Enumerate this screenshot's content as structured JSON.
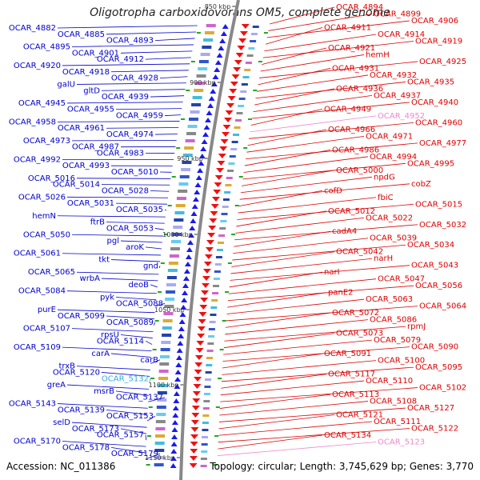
{
  "title": "Oligotropha carboxidovorans OM5, complete genome",
  "accession": "Accession: NC_011386",
  "topology": "Topology: circular; Length: 3,745,629 bp; Genes: 3,770",
  "ticks": [
    "850 kbp",
    "900 kbp",
    "950 kbp",
    "1000 kbp",
    "1050 kbp",
    "1100 kbp",
    "1150 kbp"
  ],
  "left_labels": [
    {
      "text": "OCAR_4882",
      "color": "#0000cc"
    },
    {
      "text": "OCAR_4885",
      "color": "#0000cc"
    },
    {
      "text": "OCAR_4893",
      "color": "#0000cc"
    },
    {
      "text": "OCAR_4895",
      "color": "#0000cc"
    },
    {
      "text": "OCAR_4901",
      "color": "#0000cc"
    },
    {
      "text": "OCAR_4912",
      "color": "#0000cc"
    },
    {
      "text": "OCAR_4920",
      "color": "#0000cc"
    },
    {
      "text": "OCAR_4918",
      "color": "#0000cc"
    },
    {
      "text": "OCAR_4928",
      "color": "#0000cc"
    },
    {
      "text": "galU",
      "color": "#0000cc"
    },
    {
      "text": "gltD",
      "color": "#0000cc"
    },
    {
      "text": "OCAR_4939",
      "color": "#0000cc"
    },
    {
      "text": "OCAR_4945",
      "color": "#0000cc"
    },
    {
      "text": "OCAR_4955",
      "color": "#0000cc"
    },
    {
      "text": "OCAR_4959",
      "color": "#0000cc"
    },
    {
      "text": "OCAR_4958",
      "color": "#0000cc"
    },
    {
      "text": "OCAR_4961",
      "color": "#0000cc"
    },
    {
      "text": "OCAR_4974",
      "color": "#0000cc"
    },
    {
      "text": "OCAR_4973",
      "color": "#0000cc"
    },
    {
      "text": "OCAR_4987",
      "color": "#0000cc"
    },
    {
      "text": "OCAR_4983",
      "color": "#0000cc"
    },
    {
      "text": "OCAR_4992",
      "color": "#0000cc"
    },
    {
      "text": "OCAR_4993",
      "color": "#0000cc"
    },
    {
      "text": "OCAR_5010",
      "color": "#0000cc"
    },
    {
      "text": "OCAR_5016",
      "color": "#0000cc"
    },
    {
      "text": "OCAR_5014",
      "color": "#0000cc"
    },
    {
      "text": "OCAR_5028",
      "color": "#0000cc"
    },
    {
      "text": "OCAR_5026",
      "color": "#0000cc"
    },
    {
      "text": "OCAR_5031",
      "color": "#0000cc"
    },
    {
      "text": "OCAR_5035",
      "color": "#0000cc"
    },
    {
      "text": "hemN",
      "color": "#0000cc"
    },
    {
      "text": "ftrB",
      "color": "#0000cc"
    },
    {
      "text": "OCAR_5053",
      "color": "#0000cc"
    },
    {
      "text": "OCAR_5050",
      "color": "#0000cc"
    },
    {
      "text": "pgl",
      "color": "#0000cc"
    },
    {
      "text": "aroK",
      "color": "#0000cc"
    },
    {
      "text": "OCAR_5061",
      "color": "#0000cc"
    },
    {
      "text": "tkt",
      "color": "#0000cc"
    },
    {
      "text": "gnd",
      "color": "#0000cc"
    },
    {
      "text": "OCAR_5065",
      "color": "#0000cc"
    },
    {
      "text": "wrbA",
      "color": "#0000cc"
    },
    {
      "text": "deoB",
      "color": "#0000cc"
    },
    {
      "text": "OCAR_5084",
      "color": "#0000cc"
    },
    {
      "text": "pyk",
      "color": "#0000cc"
    },
    {
      "text": "OCAR_5088",
      "color": "#0000cc"
    },
    {
      "text": "purE",
      "color": "#0000cc"
    },
    {
      "text": "OCAR_5099",
      "color": "#0000cc"
    },
    {
      "text": "OCAR_5089",
      "color": "#0000cc"
    },
    {
      "text": "OCAR_5107",
      "color": "#0000cc"
    },
    {
      "text": "rpsU",
      "color": "#0000cc"
    },
    {
      "text": "OCAR_5114",
      "color": "#0000cc"
    },
    {
      "text": "OCAR_5109",
      "color": "#0000cc"
    },
    {
      "text": "carA",
      "color": "#0000cc"
    },
    {
      "text": "carB",
      "color": "#0000cc"
    },
    {
      "text": "trxB",
      "color": "#0000cc"
    },
    {
      "text": "OCAR_5120",
      "color": "#0000cc"
    },
    {
      "text": "OCAR_5132",
      "color": "#33aadd"
    },
    {
      "text": "greA",
      "color": "#0000cc"
    },
    {
      "text": "msrB",
      "color": "#0000cc"
    },
    {
      "text": "OCAR_5137",
      "color": "#0000cc"
    },
    {
      "text": "OCAR_5143",
      "color": "#0000cc"
    },
    {
      "text": "OCAR_5139",
      "color": "#0000cc"
    },
    {
      "text": "OCAR_5153",
      "color": "#0000cc"
    },
    {
      "text": "selD",
      "color": "#0000cc"
    },
    {
      "text": "OCAR_5173",
      "color": "#0000cc"
    },
    {
      "text": "OCAR_5157",
      "color": "#0000cc"
    },
    {
      "text": "OCAR_5170",
      "color": "#0000cc"
    },
    {
      "text": "OCAR_5178",
      "color": "#0000cc"
    },
    {
      "text": "OCAR_5179",
      "color": "#0000cc"
    }
  ],
  "right_labels": [
    {
      "text": "OCAR_4894",
      "color": "#dd0000"
    },
    {
      "text": "OCAR_4899",
      "color": "#dd0000"
    },
    {
      "text": "OCAR_4906",
      "color": "#dd0000"
    },
    {
      "text": "OCAR_4911",
      "color": "#dd0000"
    },
    {
      "text": "OCAR_4914",
      "color": "#dd0000"
    },
    {
      "text": "OCAR_4919",
      "color": "#dd0000"
    },
    {
      "text": "OCAR_4921",
      "color": "#dd0000"
    },
    {
      "text": "hemH",
      "color": "#dd0000"
    },
    {
      "text": "OCAR_4925",
      "color": "#dd0000"
    },
    {
      "text": "OCAR_4931",
      "color": "#dd0000"
    },
    {
      "text": "OCAR_4932",
      "color": "#dd0000"
    },
    {
      "text": "OCAR_4935",
      "color": "#dd0000"
    },
    {
      "text": "OCAR_4936",
      "color": "#dd0000"
    },
    {
      "text": "OCAR_4937",
      "color": "#dd0000"
    },
    {
      "text": "OCAR_4940",
      "color": "#dd0000"
    },
    {
      "text": "OCAR_4949",
      "color": "#dd0000"
    },
    {
      "text": "OCAR_4952",
      "color": "#ee88cc"
    },
    {
      "text": "OCAR_4960",
      "color": "#dd0000"
    },
    {
      "text": "OCAR_4966",
      "color": "#dd0000"
    },
    {
      "text": "OCAR_4971",
      "color": "#dd0000"
    },
    {
      "text": "OCAR_4977",
      "color": "#dd0000"
    },
    {
      "text": "OCAR_4986",
      "color": "#dd0000"
    },
    {
      "text": "OCAR_4994",
      "color": "#dd0000"
    },
    {
      "text": "OCAR_4995",
      "color": "#dd0000"
    },
    {
      "text": "OCAR_5000",
      "color": "#dd0000"
    },
    {
      "text": "npdG",
      "color": "#dd0000"
    },
    {
      "text": "cobZ",
      "color": "#dd0000"
    },
    {
      "text": "cofD",
      "color": "#dd0000"
    },
    {
      "text": "fbiC",
      "color": "#dd0000"
    },
    {
      "text": "OCAR_5015",
      "color": "#dd0000"
    },
    {
      "text": "OCAR_5012",
      "color": "#dd0000"
    },
    {
      "text": "OCAR_5022",
      "color": "#dd0000"
    },
    {
      "text": "OCAR_5032",
      "color": "#dd0000"
    },
    {
      "text": "cadA4",
      "color": "#dd0000"
    },
    {
      "text": "OCAR_5039",
      "color": "#dd0000"
    },
    {
      "text": "OCAR_5034",
      "color": "#dd0000"
    },
    {
      "text": "OCAR_5042",
      "color": "#dd0000"
    },
    {
      "text": "narH",
      "color": "#dd0000"
    },
    {
      "text": "OCAR_5043",
      "color": "#dd0000"
    },
    {
      "text": "narI",
      "color": "#dd0000"
    },
    {
      "text": "OCAR_5047",
      "color": "#dd0000"
    },
    {
      "text": "OCAR_5056",
      "color": "#dd0000"
    },
    {
      "text": "panE2",
      "color": "#dd0000"
    },
    {
      "text": "OCAR_5063",
      "color": "#dd0000"
    },
    {
      "text": "OCAR_5064",
      "color": "#dd0000"
    },
    {
      "text": "OCAR_5072",
      "color": "#dd0000"
    },
    {
      "text": "OCAR_5086",
      "color": "#dd0000"
    },
    {
      "text": "rpmJ",
      "color": "#dd0000"
    },
    {
      "text": "OCAR_5073",
      "color": "#dd0000"
    },
    {
      "text": "OCAR_5079",
      "color": "#dd0000"
    },
    {
      "text": "OCAR_5090",
      "color": "#dd0000"
    },
    {
      "text": "OCAR_5091",
      "color": "#dd0000"
    },
    {
      "text": "OCAR_5100",
      "color": "#dd0000"
    },
    {
      "text": "OCAR_5095",
      "color": "#dd0000"
    },
    {
      "text": "OCAR_5117",
      "color": "#dd0000"
    },
    {
      "text": "OCAR_5110",
      "color": "#dd0000"
    },
    {
      "text": "OCAR_5102",
      "color": "#dd0000"
    },
    {
      "text": "OCAR_5113",
      "color": "#dd0000"
    },
    {
      "text": "OCAR_5108",
      "color": "#dd0000"
    },
    {
      "text": "OCAR_5127",
      "color": "#dd0000"
    },
    {
      "text": "OCAR_5121",
      "color": "#dd0000"
    },
    {
      "text": "OCAR_5111",
      "color": "#dd0000"
    },
    {
      "text": "OCAR_5122",
      "color": "#dd0000"
    },
    {
      "text": "OCAR_5134",
      "color": "#dd0000"
    },
    {
      "text": "OCAR_5123",
      "color": "#ee88cc"
    }
  ]
}
